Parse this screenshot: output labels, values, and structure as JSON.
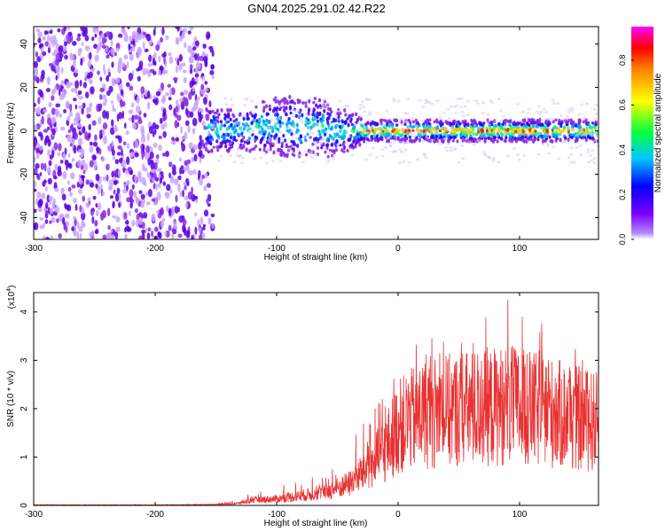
{
  "title": "GN04.2025.291.02.42.R22",
  "chart_data": [
    {
      "type": "heatmap",
      "xlabel": "Height of straight line (km)",
      "ylabel": "Frequency (Hz)",
      "xlim": [
        -300,
        165
      ],
      "ylim": [
        -50,
        48
      ],
      "x_ticks": [
        -300,
        -200,
        -100,
        0,
        100
      ],
      "y_ticks": [
        -40,
        -20,
        0,
        20,
        40
      ],
      "colorbar": {
        "label": "Normalized spectral amplitude",
        "range": [
          0,
          0.95
        ],
        "ticks": [
          "0.0",
          "0.2",
          "0.4",
          "0.6",
          "0.8"
        ],
        "colormap": "rainbow (purple to red)"
      },
      "description_regions": [
        {
          "x": [
            -300,
            -155
          ],
          "pattern": "broadband noise spanning all frequencies",
          "amplitude": "low (purple)"
        },
        {
          "x": [
            -155,
            -30
          ],
          "pattern": "signal band centered near 0 Hz, widening to about ±15 Hz",
          "amplitude": "blue to cyan"
        },
        {
          "x": [
            -30,
            165
          ],
          "pattern": "narrow band near 0 Hz with peaks",
          "amplitude": "cyan to red near 0 Hz"
        }
      ]
    },
    {
      "type": "line",
      "xlabel": "Height of straight line (km)",
      "ylabel": "SNR (10 * v/v)",
      "y_scale_label": "(x10",
      "y_scale_exponent": "4",
      "xlim": [
        -300,
        165
      ],
      "ylim": [
        0,
        4.4
      ],
      "x_ticks": [
        -300,
        -200,
        -100,
        0,
        100
      ],
      "y_ticks": [
        0,
        1,
        2,
        3,
        4
      ],
      "series": [
        {
          "color": "#e83232",
          "envelope": [
            {
              "x": -300,
              "mean": 0.01,
              "max": 0.02
            },
            {
              "x": -200,
              "mean": 0.01,
              "max": 0.02
            },
            {
              "x": -150,
              "mean": 0.02,
              "max": 0.04
            },
            {
              "x": -130,
              "mean": 0.05,
              "max": 0.12
            },
            {
              "x": -120,
              "mean": 0.12,
              "max": 0.35
            },
            {
              "x": -100,
              "mean": 0.15,
              "max": 0.45
            },
            {
              "x": -60,
              "mean": 0.3,
              "max": 0.7
            },
            {
              "x": -40,
              "mean": 0.5,
              "max": 1.3
            },
            {
              "x": -20,
              "mean": 1.0,
              "max": 2.0
            },
            {
              "x": -10,
              "mean": 1.3,
              "max": 2.6
            },
            {
              "x": 0,
              "mean": 1.8,
              "max": 3.0
            },
            {
              "x": 20,
              "mean": 2.1,
              "max": 3.5
            },
            {
              "x": 50,
              "mean": 2.2,
              "max": 3.7
            },
            {
              "x": 90,
              "mean": 2.3,
              "max": 4.4
            },
            {
              "x": 110,
              "mean": 2.2,
              "max": 4.0
            },
            {
              "x": 130,
              "mean": 2.1,
              "max": 3.5
            },
            {
              "x": 165,
              "mean": 1.9,
              "max": 3.0
            }
          ]
        }
      ]
    }
  ]
}
